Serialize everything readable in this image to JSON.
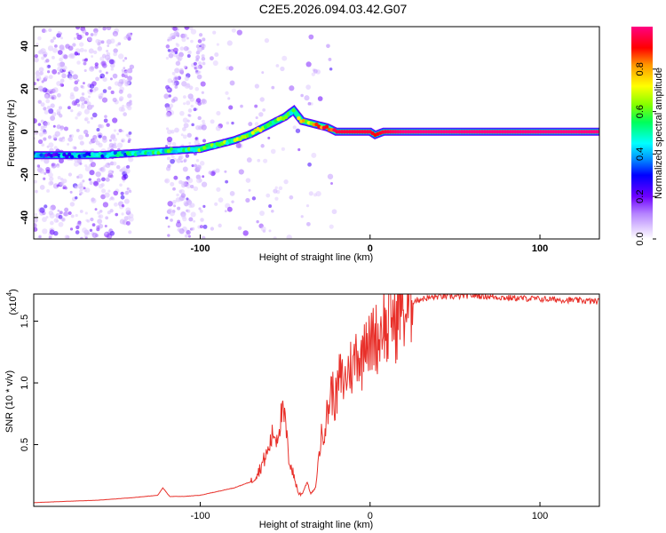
{
  "title": "C2E5.2026.094.03.42.G07",
  "colors": {
    "snr_line": "#e8302a",
    "gradient": [
      "#ffffff",
      "#e6d4ff",
      "#b98cff",
      "#6a00ff",
      "#0000ff",
      "#0096ff",
      "#00ffff",
      "#00ff60",
      "#80ff00",
      "#ffff00",
      "#ff9900",
      "#ff0000",
      "#ff0080"
    ]
  },
  "chart_data": [
    {
      "type": "heatmap",
      "name": "spectrogram",
      "xlabel": "Height of straight line (km)",
      "ylabel": "Frequency (Hz)",
      "xlim": [
        -198,
        135
      ],
      "ylim": [
        -50,
        49
      ],
      "xticks": [
        -100,
        0,
        100
      ],
      "xtick_labels": [
        "-100",
        "0",
        "100"
      ],
      "yticks": [
        40,
        20,
        0,
        -20,
        -40
      ],
      "ytick_labels": [
        "40",
        "20",
        "0",
        "-20",
        "-40"
      ],
      "ridge": {
        "x": [
          -198,
          -180,
          -160,
          -140,
          -120,
          -100,
          -80,
          -70,
          -60,
          -55,
          -50,
          -45,
          -40,
          -35,
          -30,
          -25,
          -20,
          -10,
          0,
          3,
          8,
          20,
          135
        ],
        "y": [
          -11,
          -11,
          -11,
          -10,
          -9,
          -8,
          -4,
          -1,
          3,
          5,
          7,
          10,
          5,
          4,
          3,
          2,
          0,
          0,
          0,
          -1.5,
          0,
          0,
          0
        ],
        "amp": [
          0.3,
          0.35,
          0.4,
          0.45,
          0.5,
          0.55,
          0.6,
          0.6,
          0.65,
          0.6,
          0.55,
          0.5,
          0.7,
          0.75,
          0.8,
          0.85,
          0.95,
          0.95,
          0.95,
          0.9,
          0.95,
          1.0,
          1.0
        ]
      },
      "colorbar": {
        "label": "Normalized spectral amplitude",
        "range": [
          0,
          1
        ],
        "ticks": [
          0.0,
          0.2,
          0.4,
          0.6,
          0.8
        ],
        "tick_labels": [
          "0.0",
          "0.2",
          "0.4",
          "0.6",
          "0.8"
        ]
      }
    },
    {
      "type": "line",
      "name": "snr",
      "xlabel": "Height of straight line (km)",
      "ylabel": "SNR (10 * v/v)",
      "scale_label": "(x10",
      "scale_exp": "4",
      "scale_close": ")",
      "xlim": [
        -198,
        135
      ],
      "ylim": [
        0,
        1.72
      ],
      "xticks": [
        -100,
        0,
        100
      ],
      "xtick_labels": [
        "-100",
        "0",
        "100"
      ],
      "yticks": [
        0.5,
        1.0,
        1.5
      ],
      "ytick_labels": [
        "0.5",
        "1.0",
        "1.5"
      ],
      "series": [
        {
          "name": "SNR",
          "x": [
            -198,
            -180,
            -160,
            -140,
            -125,
            -122,
            -118,
            -110,
            -100,
            -90,
            -80,
            -70,
            -65,
            -60,
            -57,
            -55,
            -52,
            -50,
            -48,
            -45,
            -42,
            -40,
            -37,
            -35,
            -32,
            -30,
            -28,
            -25,
            -23,
            -20,
            -18,
            -15,
            -12,
            -10,
            -8,
            -5,
            -3,
            0,
            2,
            5,
            8,
            10,
            12,
            15,
            18,
            20,
            25,
            30,
            40,
            50,
            60,
            80,
            100,
            120,
            135
          ],
          "y": [
            0.03,
            0.04,
            0.05,
            0.07,
            0.09,
            0.15,
            0.08,
            0.08,
            0.09,
            0.12,
            0.15,
            0.2,
            0.3,
            0.45,
            0.6,
            0.55,
            0.75,
            0.7,
            0.4,
            0.25,
            0.1,
            0.1,
            0.2,
            0.1,
            0.15,
            0.45,
            0.6,
            0.75,
            0.95,
            0.85,
            1.05,
            1.0,
            1.15,
            1.1,
            1.3,
            1.15,
            1.5,
            1.25,
            1.4,
            1.35,
            1.55,
            1.35,
            1.6,
            1.45,
            1.68,
            1.55,
            1.66,
            1.68,
            1.7,
            1.7,
            1.71,
            1.69,
            1.68,
            1.67,
            1.66
          ]
        }
      ]
    }
  ]
}
